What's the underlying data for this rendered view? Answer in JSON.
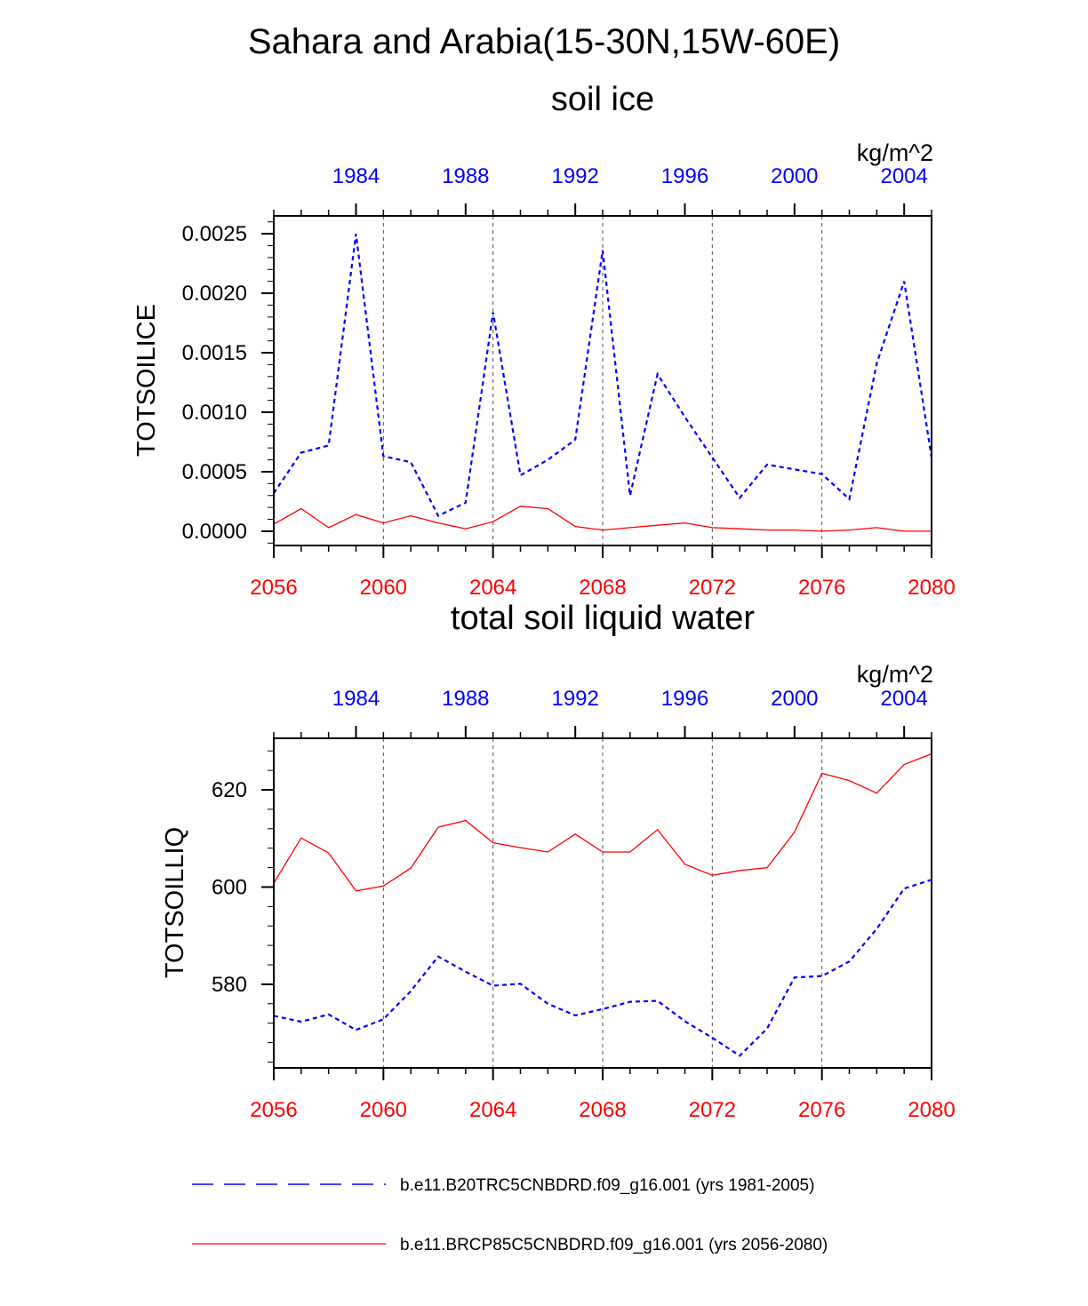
{
  "main_title": "Sahara and Arabia(15-30N,15W-60E)",
  "colors": {
    "hist": "#0000ff",
    "future": "#ff0000",
    "axis": "#000000",
    "grid": "#555555"
  },
  "legend": [
    {
      "label": "b.e11.B20TRC5CNBDRD.f09_g16.001 (yrs 1981-2005)",
      "color": "#0000ff",
      "style": "dashed"
    },
    {
      "label": "b.e11.BRCP85C5CNBDRD.f09_g16.001 (yrs 2056-2080)",
      "color": "#ff0000",
      "style": "solid"
    }
  ],
  "chart_data": [
    {
      "type": "line",
      "title": "soil ice",
      "units": "kg/m^2",
      "ylabel": "TOTSOILICE",
      "xlabel": "",
      "xlim": [
        2056,
        2080
      ],
      "ylim": [
        -0.00012,
        0.00265
      ],
      "x_bottom_ticks": [
        "2056",
        "2060",
        "2064",
        "2068",
        "2072",
        "2076",
        "2080"
      ],
      "x_top_ticks": [
        "1984",
        "1988",
        "1992",
        "1996",
        "2000",
        "2004"
      ],
      "y_tick_values": [
        0,
        0.0005,
        0.001,
        0.0015,
        0.002,
        0.0025
      ],
      "y_ticks": [
        "0.0000",
        "0.0005",
        "0.0010",
        "0.0015",
        "0.0020",
        "0.0025"
      ],
      "x": [
        2056,
        2057,
        2058,
        2059,
        2060,
        2061,
        2062,
        2063,
        2064,
        2065,
        2066,
        2067,
        2068,
        2069,
        2070,
        2071,
        2072,
        2073,
        2074,
        2075,
        2076,
        2077,
        2078,
        2079,
        2080
      ],
      "series": [
        {
          "name": "b.e11.B20TRC5CNBDRD.f09_g16.001 (yrs 1981-2005)",
          "axis": "top",
          "color": "#0000ff",
          "style": "dashed",
          "values": [
            0.00032,
            0.00066,
            0.00072,
            0.0025,
            0.00063,
            0.00058,
            0.00013,
            0.00024,
            0.00184,
            0.00047,
            0.0006,
            0.00077,
            0.00236,
            0.0003,
            0.00132,
            0.00096,
            0.00062,
            0.00028,
            0.00056,
            0.00052,
            0.00048,
            0.00027,
            0.00141,
            0.0021,
            0.00062
          ]
        },
        {
          "name": "b.e11.BRCP85C5CNBDRD.f09_g16.001 (yrs 2056-2080)",
          "axis": "bottom",
          "color": "#ff0000",
          "style": "solid",
          "values": [
            6e-05,
            0.00019,
            3e-05,
            0.00014,
            7e-05,
            0.00013,
            7e-05,
            2e-05,
            8e-05,
            0.00021,
            0.00019,
            4e-05,
            1e-05,
            3e-05,
            5e-05,
            7e-05,
            3e-05,
            2e-05,
            1e-05,
            1e-05,
            0.0,
            1e-05,
            3e-05,
            0.0,
            0.0
          ]
        }
      ]
    },
    {
      "type": "line",
      "title": "total soil liquid water",
      "units": "kg/m^2",
      "ylabel": "TOTSOILLIQ",
      "xlabel": "",
      "xlim": [
        2056,
        2080
      ],
      "ylim": [
        562.8,
        630.6
      ],
      "x_bottom_ticks": [
        "2056",
        "2060",
        "2064",
        "2068",
        "2072",
        "2076",
        "2080"
      ],
      "x_top_ticks": [
        "1984",
        "1988",
        "1992",
        "1996",
        "2000",
        "2004"
      ],
      "y_tick_values": [
        580,
        600,
        620
      ],
      "y_ticks": [
        "580",
        "600",
        "620"
      ],
      "x": [
        2056,
        2057,
        2058,
        2059,
        2060,
        2061,
        2062,
        2063,
        2064,
        2065,
        2066,
        2067,
        2068,
        2069,
        2070,
        2071,
        2072,
        2073,
        2074,
        2075,
        2076,
        2077,
        2078,
        2079,
        2080
      ],
      "series": [
        {
          "name": "b.e11.B20TRC5CNBDRD.f09_g16.001 (yrs 1981-2005)",
          "axis": "top",
          "color": "#0000ff",
          "style": "dashed",
          "values": [
            573.5,
            572.3,
            573.8,
            570.6,
            572.8,
            578.6,
            585.7,
            582.6,
            579.7,
            580.1,
            576.0,
            573.6,
            574.9,
            576.4,
            576.6,
            572.4,
            569.0,
            565.3,
            570.9,
            581.4,
            581.7,
            584.7,
            591.4,
            599.7,
            601.5
          ]
        },
        {
          "name": "b.e11.BRCP85C5CNBDRD.f09_g16.001 (yrs 2056-2080)",
          "axis": "bottom",
          "color": "#ff0000",
          "style": "solid",
          "values": [
            600.8,
            610.1,
            607.0,
            599.2,
            600.2,
            603.9,
            612.3,
            613.7,
            609.1,
            608.1,
            607.2,
            610.9,
            607.2,
            607.2,
            611.8,
            604.7,
            602.4,
            603.4,
            604.0,
            611.3,
            623.4,
            621.9,
            619.3,
            625.2,
            627.4
          ]
        }
      ]
    }
  ]
}
